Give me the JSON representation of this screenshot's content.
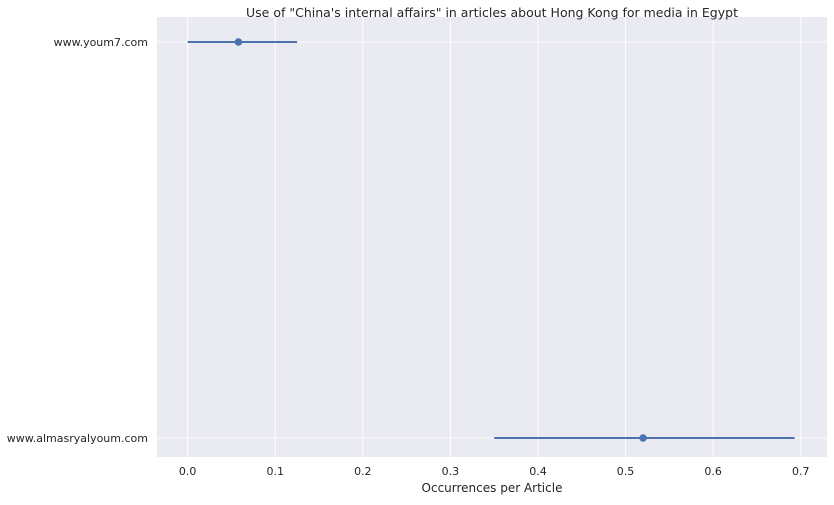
{
  "chart_data": {
    "type": "scatter",
    "title": "Use of \"China's internal affairs\" in articles about Hong Kong for media in Egypt",
    "xlabel": "Occurrences per Article",
    "ylabel": "",
    "xlim": [
      -0.035,
      0.73
    ],
    "xticks": [
      0.0,
      0.1,
      0.2,
      0.3,
      0.4,
      0.5,
      0.6,
      0.7
    ],
    "xtick_labels": [
      "0.0",
      "0.1",
      "0.2",
      "0.3",
      "0.4",
      "0.5",
      "0.6",
      "0.7"
    ],
    "categories": [
      "www.youm7.com",
      "www.almasryalyoum.com"
    ],
    "values": [
      0.058,
      0.52
    ],
    "ci_low": [
      0.0,
      0.35
    ],
    "ci_high": [
      0.125,
      0.693
    ],
    "grid": true,
    "colors": {
      "background": "#EAEAF2",
      "grid": "#FFFFFF",
      "point": "#4C72B0"
    }
  }
}
